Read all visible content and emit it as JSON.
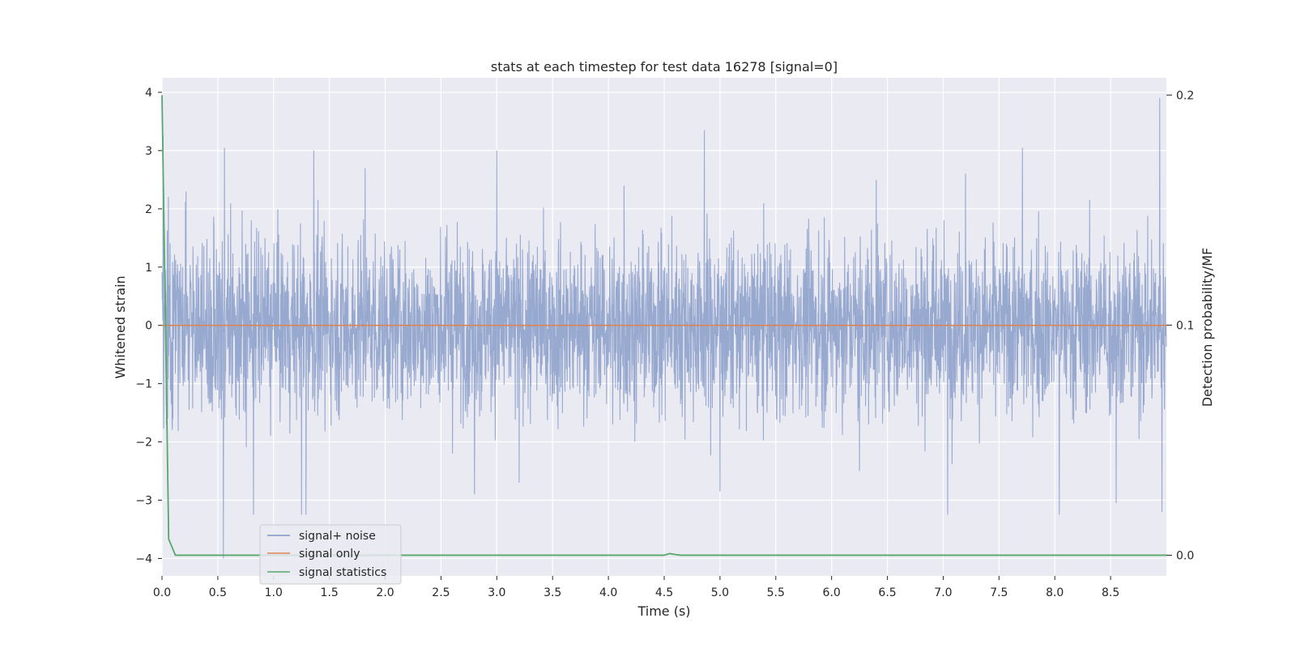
{
  "chart_data": {
    "type": "line",
    "title": "stats at each timestep for test data 16278 [signal=0]",
    "xlabel": "Time (s)",
    "ylabel": "Whitened strain",
    "ylabel_right": "Detection probability/MF",
    "xlim": [
      0,
      9
    ],
    "ylim": [
      -4.3,
      4.25
    ],
    "ylim_right": [
      -0.009,
      0.2075
    ],
    "x_ticks": [
      0.0,
      0.5,
      1.0,
      1.5,
      2.0,
      2.5,
      3.0,
      3.5,
      4.0,
      4.5,
      5.0,
      5.5,
      6.0,
      6.5,
      7.0,
      7.5,
      8.0,
      8.5
    ],
    "x_tick_labels": [
      "0.0",
      "0.5",
      "1.0",
      "1.5",
      "2.0",
      "2.5",
      "3.0",
      "3.5",
      "4.0",
      "4.5",
      "5.0",
      "5.5",
      "6.0",
      "6.5",
      "7.0",
      "7.5",
      "8.0",
      "8.5"
    ],
    "y_ticks": [
      4,
      3,
      2,
      1,
      0,
      -1,
      -2,
      -3,
      -4
    ],
    "y_tick_labels": [
      "4",
      "3",
      "2",
      "1",
      "0",
      "−1",
      "−2",
      "−3",
      "−4"
    ],
    "y_right_ticks": [
      0.2,
      0.1,
      0.0
    ],
    "y_right_tick_labels": [
      "0.2",
      "0.1",
      "0.0"
    ],
    "grid": true,
    "legend_placement": "lower-left",
    "colors": {
      "noise": "#8096c6",
      "signal": "#dd8452",
      "stats": "#55a868",
      "background": "#eaeaf2",
      "grid": "#ffffff"
    },
    "series": [
      {
        "name": "signal+ noise",
        "axis": "left",
        "style": "dense-noise",
        "x_range": [
          0,
          9
        ],
        "typical_envelope": [
          -1.7,
          1.7
        ],
        "peaks": [
          {
            "x": 0.01,
            "y": 3.25
          },
          {
            "x": 0.04,
            "y": -1.7
          },
          {
            "x": 0.56,
            "y": 3.05
          },
          {
            "x": 0.55,
            "y": -4.0
          },
          {
            "x": 0.82,
            "y": -3.25
          },
          {
            "x": 1.36,
            "y": 3.0
          },
          {
            "x": 1.25,
            "y": -3.25
          },
          {
            "x": 1.29,
            "y": -3.25
          },
          {
            "x": 3.0,
            "y": 3.0
          },
          {
            "x": 2.8,
            "y": -2.9
          },
          {
            "x": 4.86,
            "y": 3.35
          },
          {
            "x": 5.0,
            "y": -2.85
          },
          {
            "x": 7.71,
            "y": 3.05
          },
          {
            "x": 7.04,
            "y": -3.25
          },
          {
            "x": 8.04,
            "y": -3.25
          },
          {
            "x": 8.55,
            "y": -3.05
          },
          {
            "x": 8.94,
            "y": 3.9
          },
          {
            "x": 8.96,
            "y": -3.2
          },
          {
            "x": 1.82,
            "y": 2.7
          },
          {
            "x": 4.14,
            "y": 2.4
          },
          {
            "x": 6.4,
            "y": 2.5
          },
          {
            "x": 7.2,
            "y": 2.6
          },
          {
            "x": 3.2,
            "y": -2.7
          },
          {
            "x": 6.25,
            "y": -2.5
          }
        ]
      },
      {
        "name": "signal only",
        "axis": "left",
        "x": [
          0,
          9
        ],
        "y": [
          0,
          0
        ]
      },
      {
        "name": "signal statistics",
        "axis": "right",
        "x": [
          0.0,
          0.06,
          0.12,
          4.5,
          4.55,
          4.6,
          4.65,
          9.0
        ],
        "y": [
          0.2,
          0.007,
          0.0,
          0.0,
          0.0007,
          0.0003,
          0.0,
          0.0
        ]
      }
    ]
  }
}
